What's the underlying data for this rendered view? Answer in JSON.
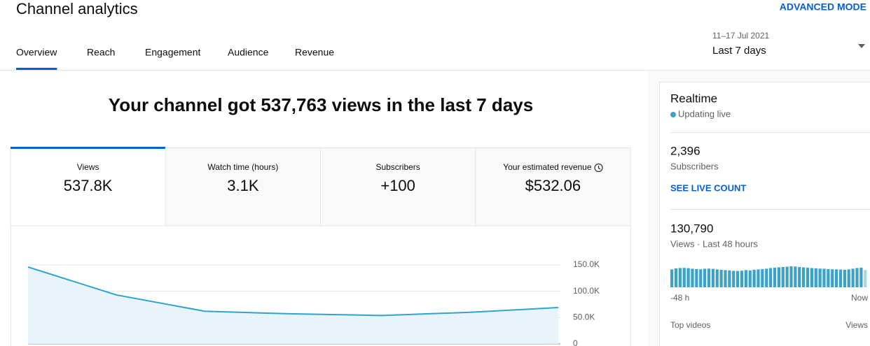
{
  "header": {
    "title": "Channel analytics",
    "advanced_mode": "ADVANCED MODE"
  },
  "tabs": [
    "Overview",
    "Reach",
    "Engagement",
    "Audience",
    "Revenue"
  ],
  "active_tab": 0,
  "date_range": {
    "dates": "11–17 Jul 2021",
    "label": "Last 7 days"
  },
  "headline": "Your channel got 537,763 views in the last 7 days",
  "metrics": [
    {
      "label": "Views",
      "value": "537.8K"
    },
    {
      "label": "Watch time (hours)",
      "value": "3.1K"
    },
    {
      "label": "Subscribers",
      "value": "+100"
    },
    {
      "label": "Your estimated revenue",
      "value": "$532.06"
    }
  ],
  "active_metric": 0,
  "realtime": {
    "title": "Realtime",
    "status": "Updating live",
    "subscribers": {
      "value": "2,396",
      "label": "Subscribers",
      "link": "SEE LIVE COUNT"
    },
    "views": {
      "value": "130,790",
      "label": "Views · Last 48 hours"
    },
    "table_header": [
      "Top videos",
      "Views"
    ]
  },
  "chart_data": [
    {
      "type": "line",
      "values": [
        146000,
        93000,
        62000,
        57000,
        54000,
        60000,
        69000
      ],
      "color": "#2fa4cc",
      "area_color": "#e8f4f9",
      "ylim": [
        0,
        150000
      ],
      "yticks": [
        0,
        {
          "value": 50000,
          "label": "50.0K"
        },
        {
          "value": 100000,
          "label": "100.0K"
        },
        {
          "value": 150000,
          "label": "150.0K"
        }
      ],
      "grid": true
    },
    {
      "type": "bar",
      "values": [
        2600,
        2750,
        2800,
        2820,
        2780,
        2700,
        2650,
        2620,
        2700,
        2720,
        2680,
        2600,
        2550,
        2500,
        2450,
        2400,
        2380,
        2420,
        2500,
        2450,
        2550,
        2600,
        2650,
        2700,
        2800,
        2850,
        2900,
        2950,
        3000,
        3050,
        3020,
        2950,
        2900,
        2850,
        2800,
        2760,
        2720,
        2700,
        2650,
        2620,
        2600,
        2580,
        2550,
        2600,
        2700,
        2800,
        2850,
        2500
      ],
      "color": "#3ca3c8",
      "last_color": "#a8d6e6",
      "xlim": [
        -48,
        0
      ],
      "xticks": [
        {
          "value": -48,
          "label": "-48 h"
        },
        {
          "value": 0,
          "label": "Now"
        }
      ]
    }
  ]
}
